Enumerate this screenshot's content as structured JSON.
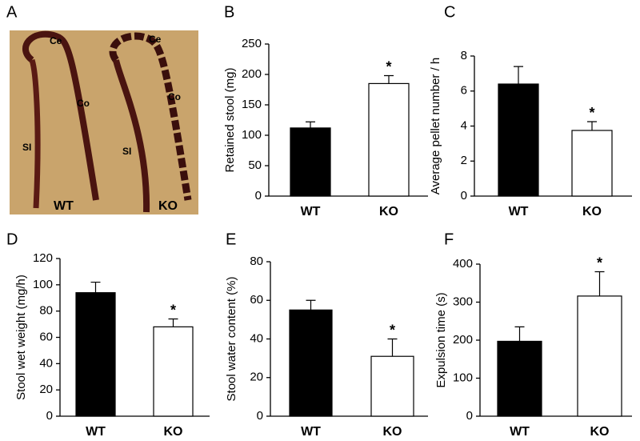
{
  "photo": {
    "panel": "A",
    "labels": [
      "Ce",
      "Ce",
      "Co",
      "Co",
      "SI",
      "SI",
      "WT",
      "KO"
    ]
  },
  "chart_data": [
    {
      "type": "bar",
      "panel": "B",
      "ylabel": "Retained stool (mg)",
      "categories": [
        "WT",
        "KO"
      ],
      "values": [
        112,
        185
      ],
      "errors": [
        10,
        13
      ],
      "colors": [
        "#000000",
        "#ffffff"
      ],
      "annotations": [
        null,
        "*"
      ],
      "ylim": [
        0,
        250
      ],
      "yticks": [
        0,
        50,
        100,
        150,
        200,
        250
      ]
    },
    {
      "type": "bar",
      "panel": "C",
      "ylabel": "Average pellet number / h",
      "categories": [
        "WT",
        "KO"
      ],
      "values": [
        6.4,
        3.75
      ],
      "errors": [
        1.0,
        0.5
      ],
      "colors": [
        "#000000",
        "#ffffff"
      ],
      "annotations": [
        null,
        "*"
      ],
      "ylim": [
        0,
        8
      ],
      "yticks": [
        0,
        2,
        4,
        6,
        8
      ]
    },
    {
      "type": "bar",
      "panel": "D",
      "ylabel": "Stool wet weight (mg/h)",
      "categories": [
        "WT",
        "KO"
      ],
      "values": [
        94,
        68
      ],
      "errors": [
        8,
        6
      ],
      "colors": [
        "#000000",
        "#ffffff"
      ],
      "annotations": [
        null,
        "*"
      ],
      "ylim": [
        0,
        120
      ],
      "yticks": [
        0,
        20,
        40,
        60,
        80,
        100,
        120
      ]
    },
    {
      "type": "bar",
      "panel": "E",
      "ylabel": "Stool water content (%)",
      "categories": [
        "WT",
        "KO"
      ],
      "values": [
        55,
        31
      ],
      "errors": [
        5,
        9
      ],
      "colors": [
        "#000000",
        "#ffffff"
      ],
      "annotations": [
        null,
        "*"
      ],
      "ylim": [
        0,
        80
      ],
      "yticks": [
        0,
        20,
        40,
        60,
        80
      ]
    },
    {
      "type": "bar",
      "panel": "F",
      "ylabel": "Expulsion time (s)",
      "categories": [
        "WT",
        "KO"
      ],
      "values": [
        197,
        316
      ],
      "errors": [
        38,
        64
      ],
      "colors": [
        "#000000",
        "#ffffff"
      ],
      "annotations": [
        null,
        "*"
      ],
      "ylim": [
        0,
        400
      ],
      "yticks": [
        0,
        100,
        200,
        300,
        400
      ]
    }
  ]
}
